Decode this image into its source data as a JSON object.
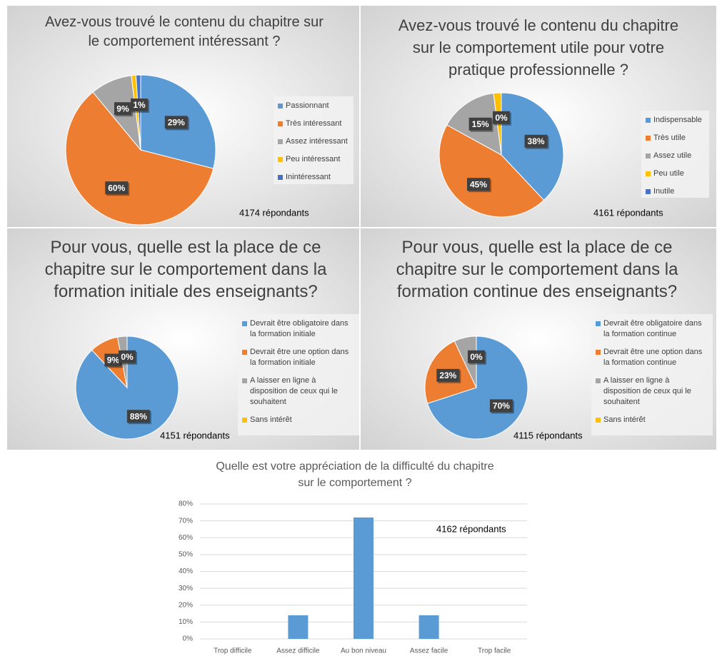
{
  "chart_data": [
    {
      "type": "pie",
      "title": "Avez-vous trouvé le contenu du chapitre sur le comportement intéressant ?",
      "categories": [
        "Passionnant",
        "Très intéressant",
        "Assez intéressant",
        "Peu intéressant",
        "Inintéressant"
      ],
      "values": [
        29,
        60,
        9,
        1,
        1
      ],
      "value_labels": [
        "29%",
        "60%",
        "9%",
        null,
        "1%"
      ],
      "colors": [
        "#5b9bd5",
        "#ed7d31",
        "#a5a5a5",
        "#ffc000",
        "#4472c4"
      ],
      "annotation": "4174 répondants"
    },
    {
      "type": "pie",
      "title": "Avez-vous trouvé le contenu du chapitre sur le comportement utile pour votre pratique professionnelle ?",
      "categories": [
        "Indispensable",
        "Très utile",
        "Assez utile",
        "Peu utile",
        "Inutile"
      ],
      "values": [
        38,
        45,
        15,
        2,
        0
      ],
      "value_labels": [
        "38%",
        "45%",
        "15%",
        null,
        "0%"
      ],
      "colors": [
        "#5b9bd5",
        "#ed7d31",
        "#a5a5a5",
        "#ffc000",
        "#4472c4"
      ],
      "annotation": "4161 répondants"
    },
    {
      "type": "pie",
      "title": "Pour vous, quelle est la place de ce chapitre sur le comportement dans la formation initiale des enseignants?",
      "categories": [
        "Devrait être obligatoire dans la formation initiale",
        "Devrait être une option dans la formation initiale",
        "A laisser en ligne à disposition de ceux qui le souhaitent",
        "Sans intérêt"
      ],
      "values": [
        88,
        9,
        3,
        0
      ],
      "value_labels": [
        "88%",
        "9%",
        null,
        "0%"
      ],
      "colors": [
        "#5b9bd5",
        "#ed7d31",
        "#a5a5a5",
        "#ffc000"
      ],
      "annotation": "4151 répondants"
    },
    {
      "type": "pie",
      "title": "Pour vous, quelle est la place de ce chapitre sur le comportement dans la formation continue des enseignants?",
      "categories": [
        "Devrait être obligatoire dans la formation continue",
        "Devrait être une option dans la formation continue",
        "A laisser en ligne à disposition de ceux qui le souhaitent",
        "Sans intérêt"
      ],
      "values": [
        70,
        23,
        7,
        0
      ],
      "value_labels": [
        "70%",
        "23%",
        null,
        "0%"
      ],
      "colors": [
        "#5b9bd5",
        "#ed7d31",
        "#a5a5a5",
        "#ffc000"
      ],
      "annotation": "4115 répondants"
    },
    {
      "type": "bar",
      "title": "Quelle est votre appréciation de la difficulté du chapitre sur le comportement ?",
      "categories": [
        "Trop difficile",
        "Assez difficile",
        "Au bon niveau",
        "Assez facile",
        "Trop facile"
      ],
      "values": [
        0,
        14,
        72,
        14,
        0
      ],
      "color": "#5b9bd5",
      "ylim": [
        0,
        80
      ],
      "yticks": [
        {
          "value": 0,
          "label": "0%"
        },
        {
          "value": 10,
          "label": "10%"
        },
        {
          "value": 20,
          "label": "20%"
        },
        {
          "value": 30,
          "label": "30%"
        },
        {
          "value": 40,
          "label": "40%"
        },
        {
          "value": 50,
          "label": "50%"
        },
        {
          "value": 60,
          "label": "60%"
        },
        {
          "value": 70,
          "label": "70%"
        },
        {
          "value": 80,
          "label": "80%"
        }
      ],
      "grid": true,
      "annotation": "4162 répondants"
    }
  ]
}
